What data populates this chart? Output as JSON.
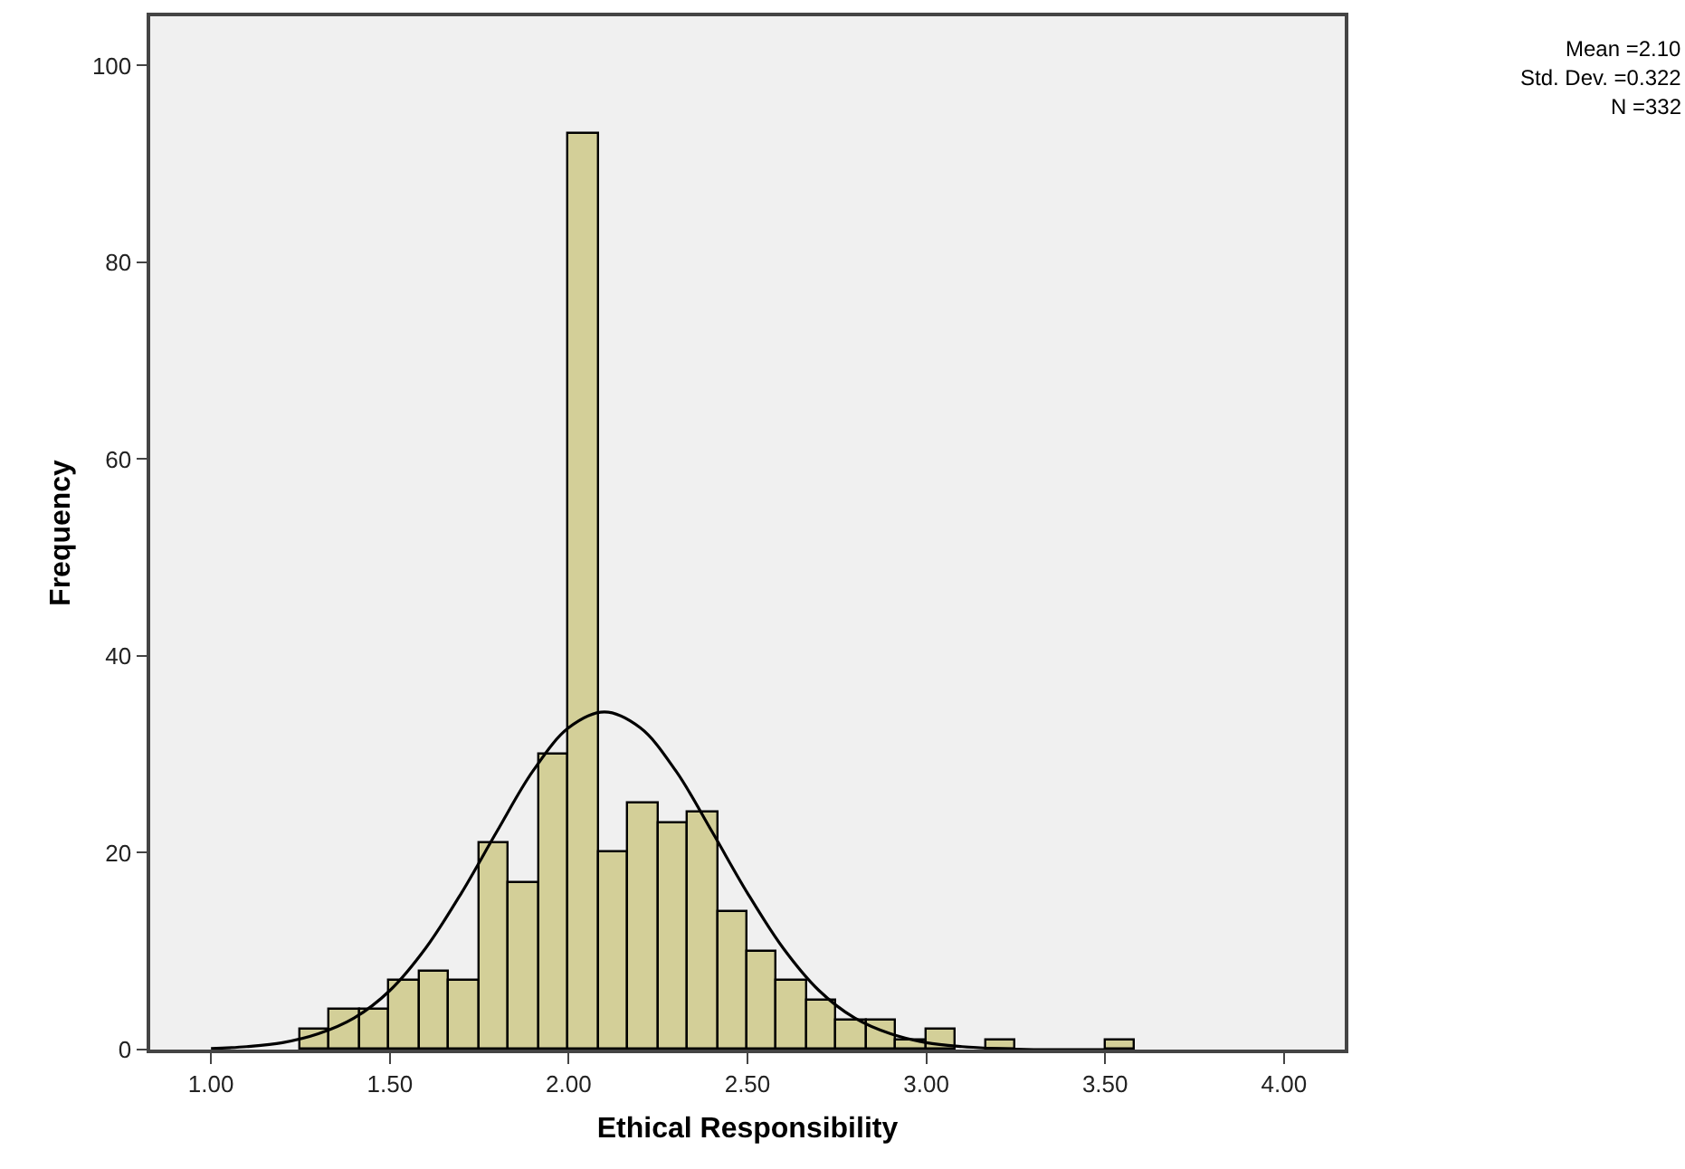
{
  "chart_data": {
    "type": "histogram",
    "xlabel": "Ethical Responsibility",
    "ylabel": "Frequency",
    "bins": [
      1.25,
      1.333,
      1.417,
      1.5,
      1.583,
      1.667,
      1.75,
      1.833,
      1.917,
      2.0,
      2.083,
      2.167,
      2.25,
      2.333,
      2.417,
      2.5,
      2.583,
      2.667,
      2.75,
      2.833,
      2.917,
      3.0,
      3.083,
      3.167,
      3.25,
      3.333,
      3.417,
      3.5,
      3.583
    ],
    "values": [
      2,
      4,
      4,
      7,
      8,
      7,
      21,
      17,
      30,
      93,
      20,
      25,
      23,
      24,
      14,
      10,
      7,
      5,
      3,
      3,
      1,
      2,
      0,
      1,
      0,
      0,
      0,
      1
    ],
    "color": "#d3cf98",
    "series": [
      {
        "type": "line",
        "color": "#000000",
        "x": [
          1.0,
          1.1,
          1.2,
          1.3,
          1.4,
          1.5,
          1.6,
          1.7,
          1.8,
          1.9,
          2.0,
          2.1,
          2.2,
          2.3,
          2.4,
          2.5,
          2.6,
          2.7,
          2.8,
          2.9,
          3.0,
          3.1,
          3.2,
          3.3,
          3.4,
          3.5
        ],
        "values": [
          0.1,
          0.3,
          0.7,
          1.6,
          3.2,
          6.0,
          10.3,
          15.9,
          22.2,
          28.3,
          32.7,
          34.3,
          32.7,
          28.3,
          22.2,
          15.9,
          10.3,
          6.0,
          3.2,
          1.6,
          0.7,
          0.3,
          0.1,
          0.0,
          0.0,
          0.0
        ]
      }
    ],
    "xlim": [
      0.83,
      4.17
    ],
    "ylim": [
      0,
      105
    ],
    "xticks": [
      {
        "value": 1,
        "label": "1.00"
      },
      {
        "value": 1.5,
        "label": "1.50"
      },
      {
        "value": 2,
        "label": "2.00"
      },
      {
        "value": 2.5,
        "label": "2.50"
      },
      {
        "value": 3,
        "label": "3.00"
      },
      {
        "value": 3.5,
        "label": "3.50"
      },
      {
        "value": 4,
        "label": "4.00"
      }
    ],
    "yticks": [
      0,
      20,
      40,
      60,
      80,
      100
    ],
    "annotations": [
      "Mean =2.10",
      "Std. Dev. =0.322",
      "N =332"
    ],
    "grid": false,
    "marker": "none",
    "line_style": "solid"
  }
}
